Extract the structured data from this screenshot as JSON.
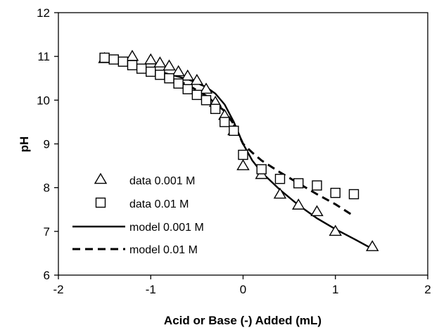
{
  "chart_data": {
    "type": "scatter",
    "xlabel": "Acid or Base (-) Added (mL)",
    "ylabel": "pH",
    "xlim": [
      -2,
      2
    ],
    "ylim": [
      6,
      12
    ],
    "xticks": [
      -2,
      -1,
      0,
      1,
      2
    ],
    "yticks": [
      6,
      7,
      8,
      9,
      10,
      11,
      12
    ],
    "grid": false,
    "legend_position": "lower-left",
    "series": [
      {
        "name": "data 0.001 M",
        "kind": "markers",
        "marker": "triangle",
        "color": "#000000",
        "points": [
          [
            -1.5,
            10.95
          ],
          [
            -1.2,
            11.0
          ],
          [
            -1.0,
            10.92
          ],
          [
            -0.9,
            10.85
          ],
          [
            -0.8,
            10.78
          ],
          [
            -0.7,
            10.65
          ],
          [
            -0.6,
            10.55
          ],
          [
            -0.5,
            10.45
          ],
          [
            -0.4,
            10.25
          ],
          [
            -0.3,
            9.95
          ],
          [
            -0.2,
            9.65
          ],
          [
            -0.1,
            9.3
          ],
          [
            0.0,
            8.5
          ],
          [
            0.2,
            8.3
          ],
          [
            0.4,
            7.85
          ],
          [
            0.6,
            7.6
          ],
          [
            0.8,
            7.45
          ],
          [
            1.0,
            7.0
          ],
          [
            1.4,
            6.65
          ]
        ]
      },
      {
        "name": "data 0.01 M",
        "kind": "markers",
        "marker": "square",
        "color": "#000000",
        "points": [
          [
            -1.5,
            10.97
          ],
          [
            -1.4,
            10.93
          ],
          [
            -1.3,
            10.88
          ],
          [
            -1.2,
            10.8
          ],
          [
            -1.1,
            10.72
          ],
          [
            -1.0,
            10.65
          ],
          [
            -0.9,
            10.58
          ],
          [
            -0.8,
            10.5
          ],
          [
            -0.7,
            10.38
          ],
          [
            -0.6,
            10.25
          ],
          [
            -0.5,
            10.12
          ],
          [
            -0.4,
            10.0
          ],
          [
            -0.3,
            9.8
          ],
          [
            -0.2,
            9.5
          ],
          [
            -0.1,
            9.3
          ],
          [
            0.0,
            8.75
          ],
          [
            0.2,
            8.42
          ],
          [
            0.4,
            8.2
          ],
          [
            0.6,
            8.1
          ],
          [
            0.8,
            8.05
          ],
          [
            1.0,
            7.88
          ],
          [
            1.2,
            7.85
          ]
        ]
      },
      {
        "name": "model 0.001 M",
        "kind": "line",
        "style": "solid",
        "color": "#000000",
        "points": [
          [
            -1.5,
            10.9
          ],
          [
            -1.2,
            10.8
          ],
          [
            -0.9,
            10.65
          ],
          [
            -0.6,
            10.48
          ],
          [
            -0.4,
            10.3
          ],
          [
            -0.3,
            10.15
          ],
          [
            -0.2,
            9.9
          ],
          [
            -0.1,
            9.5
          ],
          [
            0.0,
            9.0
          ],
          [
            0.1,
            8.62
          ],
          [
            0.2,
            8.35
          ],
          [
            0.4,
            7.95
          ],
          [
            0.6,
            7.6
          ],
          [
            0.8,
            7.3
          ],
          [
            1.0,
            7.05
          ],
          [
            1.2,
            6.83
          ],
          [
            1.4,
            6.6
          ]
        ]
      },
      {
        "name": "model 0.01 M",
        "kind": "line",
        "style": "dashed",
        "color": "#000000",
        "points": [
          [
            -1.5,
            10.92
          ],
          [
            -1.2,
            10.78
          ],
          [
            -0.9,
            10.6
          ],
          [
            -0.6,
            10.35
          ],
          [
            -0.4,
            10.1
          ],
          [
            -0.2,
            9.75
          ],
          [
            -0.1,
            9.45
          ],
          [
            0.0,
            9.0
          ],
          [
            0.1,
            8.8
          ],
          [
            0.2,
            8.62
          ],
          [
            0.4,
            8.35
          ],
          [
            0.6,
            8.1
          ],
          [
            0.8,
            7.85
          ],
          [
            1.0,
            7.62
          ],
          [
            1.2,
            7.35
          ]
        ]
      }
    ]
  }
}
